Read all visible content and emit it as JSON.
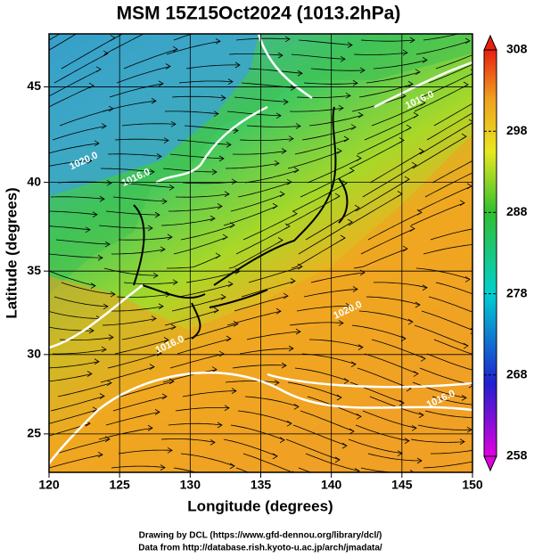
{
  "title": "MSM 15Z15Oct2024 (1013.2hPa)",
  "x_axis": {
    "label": "Longitude (degrees)",
    "xlim": [
      120,
      150
    ],
    "xticks": [
      120,
      125,
      130,
      135,
      140,
      145,
      150
    ]
  },
  "y_axis": {
    "label": "Latitude  (degrees)",
    "ylim": [
      22.5,
      47.6
    ],
    "yticks": [
      25,
      30,
      35,
      40,
      45
    ]
  },
  "colorbar": {
    "lim": [
      258,
      308
    ],
    "ticks": [
      308,
      298,
      288,
      278,
      268,
      258
    ]
  },
  "contour_labels": [
    {
      "text": "1020.0",
      "lon": 121.5,
      "lat": 40.8
    },
    {
      "text": "1016.0",
      "lon": 125.2,
      "lat": 39.9
    },
    {
      "text": "1020.0",
      "lon": 140.2,
      "lat": 32.3
    },
    {
      "text": "1016.0",
      "lon": 127.6,
      "lat": 30.2
    },
    {
      "text": "1016.0",
      "lon": 146.8,
      "lat": 26.8
    },
    {
      "text": "1016.0",
      "lon": 145.3,
      "lat": 44.0
    }
  ],
  "credits": [
    "Drawing by DCL (https://www.gfd-dennou.org/library/dcl/)",
    "Data from http://database.rish.kyoto-u.ac.jp/arch/jmadata/"
  ]
}
